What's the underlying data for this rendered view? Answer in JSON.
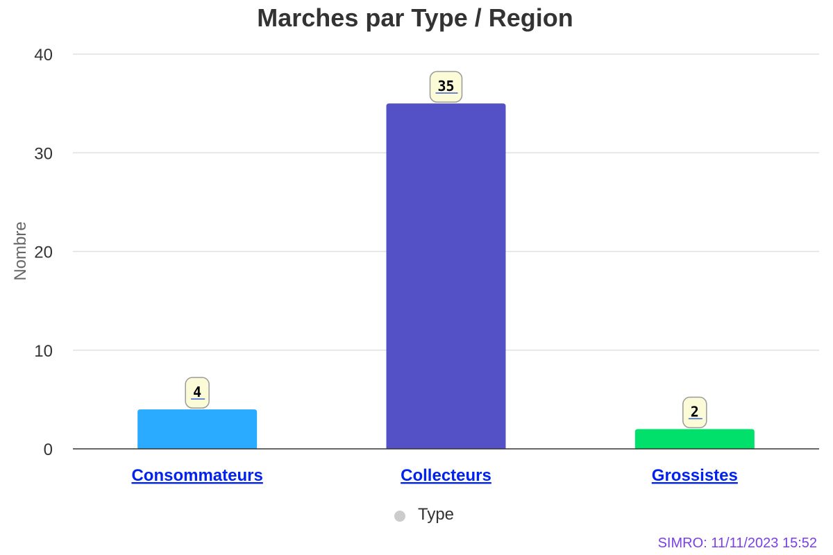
{
  "chart_data": {
    "type": "bar",
    "title": "Marches par Type / Region",
    "xlabel": "",
    "ylabel": "Nombre",
    "categories": [
      "Consommateurs",
      "Collecteurs",
      "Grossistes"
    ],
    "values": [
      4,
      35,
      2
    ],
    "colors": [
      "#2aabff",
      "#5450c6",
      "#00e06a"
    ],
    "ylim": [
      0,
      40
    ],
    "yticks": [
      0,
      10,
      20,
      30,
      40
    ],
    "grid": true,
    "legend": {
      "position": "bottom",
      "entries": [
        {
          "name": "Type",
          "color": "#cccccc"
        }
      ]
    }
  },
  "credit": {
    "text": "SIMRO: 11/11/2023 15:52",
    "color": "#7a3fe8"
  }
}
